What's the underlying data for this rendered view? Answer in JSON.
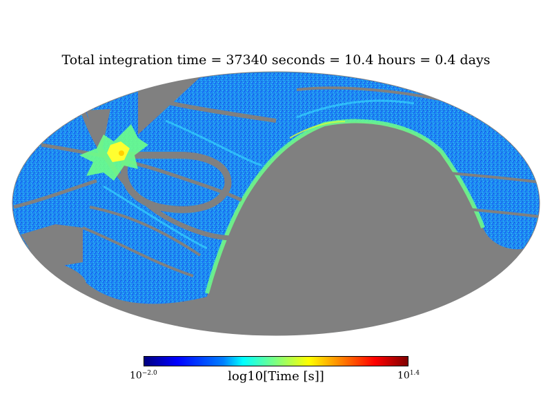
{
  "title": "Total integration time = 37340 seconds = 10.4 hours = 0.4 days",
  "colorbar": {
    "label": "log10[Time [s]]",
    "min_base": "10",
    "min_exp": "−2.0",
    "max_base": "10",
    "max_exp": "1.4",
    "colors": [
      "#00007f",
      "#0000ff",
      "#007fff",
      "#00ffff",
      "#7fff7f",
      "#ffff00",
      "#ff7f00",
      "#ff0000",
      "#7f0000"
    ]
  },
  "map": {
    "projection": "mollweide",
    "unobserved_color": "#808080",
    "dominant_color": "#1e90ff"
  }
}
